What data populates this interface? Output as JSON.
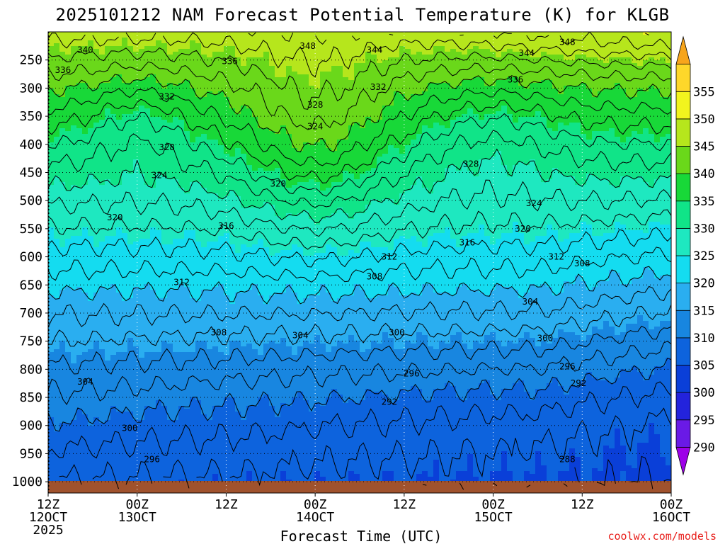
{
  "chart_data": {
    "type": "heatmap",
    "title": "2025101212 NAM Forecast Potential Temperature (K) for KLGB",
    "xlabel": "Forecast Time (UTC)",
    "ylabel": "",
    "credit": "coolwx.com/models",
    "x_range_hours": [
      0,
      84
    ],
    "y_range_hPa": [
      200,
      1020
    ],
    "x_ticks": [
      {
        "hour": 0,
        "label1": "12Z",
        "label2": "12OCT",
        "label3": "2025"
      },
      {
        "hour": 12,
        "label1": "00Z",
        "label2": "13OCT",
        "label3": ""
      },
      {
        "hour": 24,
        "label1": "12Z",
        "label2": "",
        "label3": ""
      },
      {
        "hour": 36,
        "label1": "00Z",
        "label2": "14OCT",
        "label3": ""
      },
      {
        "hour": 48,
        "label1": "12Z",
        "label2": "",
        "label3": ""
      },
      {
        "hour": 60,
        "label1": "00Z",
        "label2": "15OCT",
        "label3": ""
      },
      {
        "hour": 72,
        "label1": "12Z",
        "label2": "",
        "label3": ""
      },
      {
        "hour": 84,
        "label1": "00Z",
        "label2": "16OCT",
        "label3": ""
      }
    ],
    "y_ticks": [
      250,
      300,
      350,
      400,
      450,
      500,
      550,
      600,
      650,
      700,
      750,
      800,
      850,
      900,
      950,
      1000
    ],
    "colorbar": {
      "levels": [
        290,
        295,
        300,
        305,
        310,
        315,
        320,
        325,
        330,
        335,
        340,
        345,
        350,
        355
      ],
      "colors": [
        "#9d00e8",
        "#6a1ae6",
        "#2323dc",
        "#0a3fd8",
        "#0d63dd",
        "#1886e0",
        "#2aaef0",
        "#14dcf0",
        "#1ee8c0",
        "#10e488",
        "#18d838",
        "#6ad81a",
        "#b6e61c",
        "#f2f41e",
        "#fed72a",
        "#f7a51c"
      ]
    },
    "contour_labels": [
      {
        "text": "340",
        "x_hour": 5,
        "p": 232
      },
      {
        "text": "336",
        "x_hour": 2,
        "p": 268
      },
      {
        "text": "348",
        "x_hour": 35,
        "p": 225
      },
      {
        "text": "344",
        "x_hour": 44,
        "p": 232
      },
      {
        "text": "336",
        "x_hour": 24.5,
        "p": 252
      },
      {
        "text": "348",
        "x_hour": 70,
        "p": 218
      },
      {
        "text": "344",
        "x_hour": 64.5,
        "p": 238
      },
      {
        "text": "336",
        "x_hour": 63,
        "p": 285
      },
      {
        "text": "332",
        "x_hour": 16,
        "p": 315
      },
      {
        "text": "332",
        "x_hour": 44.5,
        "p": 298
      },
      {
        "text": "328",
        "x_hour": 36,
        "p": 330
      },
      {
        "text": "324",
        "x_hour": 36,
        "p": 368
      },
      {
        "text": "328",
        "x_hour": 16,
        "p": 405
      },
      {
        "text": "328",
        "x_hour": 57,
        "p": 435
      },
      {
        "text": "324",
        "x_hour": 15,
        "p": 455
      },
      {
        "text": "320",
        "x_hour": 31,
        "p": 470
      },
      {
        "text": "324",
        "x_hour": 65.5,
        "p": 505
      },
      {
        "text": "320",
        "x_hour": 9,
        "p": 530
      },
      {
        "text": "316",
        "x_hour": 24,
        "p": 545
      },
      {
        "text": "320",
        "x_hour": 64,
        "p": 550
      },
      {
        "text": "316",
        "x_hour": 56.5,
        "p": 575
      },
      {
        "text": "312",
        "x_hour": 46,
        "p": 600
      },
      {
        "text": "312",
        "x_hour": 68.5,
        "p": 600
      },
      {
        "text": "308",
        "x_hour": 72,
        "p": 612
      },
      {
        "text": "312",
        "x_hour": 18,
        "p": 645
      },
      {
        "text": "308",
        "x_hour": 44,
        "p": 635
      },
      {
        "text": "304",
        "x_hour": 65,
        "p": 680
      },
      {
        "text": "308",
        "x_hour": 23,
        "p": 735
      },
      {
        "text": "304",
        "x_hour": 34,
        "p": 740
      },
      {
        "text": "300",
        "x_hour": 47,
        "p": 735
      },
      {
        "text": "300",
        "x_hour": 67,
        "p": 745
      },
      {
        "text": "296",
        "x_hour": 49,
        "p": 808
      },
      {
        "text": "296",
        "x_hour": 70,
        "p": 795
      },
      {
        "text": "292",
        "x_hour": 71.5,
        "p": 825
      },
      {
        "text": "304",
        "x_hour": 5,
        "p": 822
      },
      {
        "text": "292",
        "x_hour": 46,
        "p": 858
      },
      {
        "text": "300",
        "x_hour": 11,
        "p": 905
      },
      {
        "text": "296",
        "x_hour": 14,
        "p": 960
      },
      {
        "text": "288",
        "x_hour": 70,
        "p": 960
      }
    ]
  }
}
